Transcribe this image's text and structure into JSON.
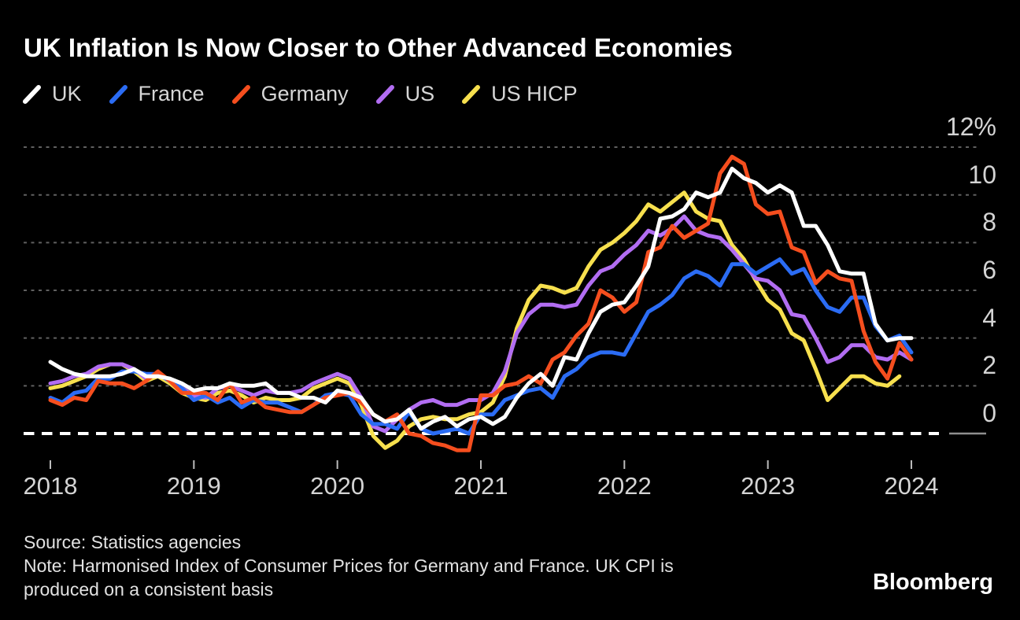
{
  "header": {
    "title": "UK Inflation Is Now Closer to Other Advanced Economies"
  },
  "footer": {
    "source": "Source: Statistics agencies",
    "note_line1": "Note: Harmonised Index of Consumer Prices for Germany and France. UK CPI is",
    "note_line2": "produced on a consistent basis"
  },
  "logo": {
    "text": "Bloomberg"
  },
  "colors": {
    "background": "#000000",
    "gridline": "#606060",
    "zero_line": "#ffffff",
    "zero_line_right_stub": "#8f8f8f",
    "axis_tick": "#bcbcbc",
    "axis_text": "#d4d4d4",
    "legend_text": "#d6d6d6",
    "title_text": "#ffffff"
  },
  "chart_data": {
    "type": "line",
    "title": "UK Inflation Is Now Closer to Other Advanced Economies",
    "unit": "% year-over-year",
    "x_start": "2018-01",
    "frequency": "monthly",
    "x_ticks": [
      "2018",
      "2019",
      "2020",
      "2021",
      "2022",
      "2023",
      "2024"
    ],
    "y_ticks": [
      0,
      2,
      4,
      6,
      8,
      10,
      12
    ],
    "y_top_tick_label": "12%",
    "ylim": [
      -1.5,
      12.5
    ],
    "grid": "horizontal-dotted",
    "zero_line": "thick-white-dashed",
    "legend_position": "top-left",
    "series": [
      {
        "name": "US HICP",
        "color": "#f7e04e",
        "values": [
          1.9,
          2.0,
          2.2,
          2.4,
          2.7,
          2.9,
          2.9,
          2.6,
          2.2,
          2.4,
          2.1,
          1.7,
          1.5,
          1.4,
          1.7,
          1.8,
          1.6,
          1.3,
          1.5,
          1.4,
          1.4,
          1.5,
          1.9,
          2.1,
          2.3,
          2.1,
          1.2,
          -0.1,
          -0.6,
          -0.3,
          0.3,
          0.6,
          0.7,
          0.6,
          0.6,
          0.8,
          0.9,
          1.3,
          2.4,
          4.4,
          5.6,
          6.2,
          6.1,
          5.9,
          6.1,
          7.0,
          7.7,
          8.0,
          8.4,
          8.9,
          9.6,
          9.3,
          9.7,
          10.1,
          9.3,
          9.0,
          8.9,
          7.9,
          7.3,
          6.4,
          5.6,
          5.2,
          4.2,
          3.9,
          2.7,
          1.4,
          1.9,
          2.4,
          2.4,
          2.1,
          2.0,
          2.4
        ]
      },
      {
        "name": "US",
        "color": "#b26df2",
        "values": [
          2.1,
          2.2,
          2.4,
          2.5,
          2.8,
          2.9,
          2.9,
          2.7,
          2.3,
          2.5,
          2.2,
          1.9,
          1.6,
          1.5,
          1.9,
          2.0,
          1.8,
          1.6,
          1.8,
          1.7,
          1.7,
          1.8,
          2.1,
          2.3,
          2.5,
          2.3,
          1.5,
          0.3,
          0.1,
          0.6,
          1.0,
          1.3,
          1.4,
          1.2,
          1.2,
          1.4,
          1.4,
          1.7,
          2.6,
          4.2,
          5.0,
          5.4,
          5.4,
          5.3,
          5.4,
          6.2,
          6.8,
          7.0,
          7.5,
          7.9,
          8.5,
          8.3,
          8.6,
          9.1,
          8.5,
          8.3,
          8.2,
          7.7,
          7.1,
          6.5,
          6.4,
          6.0,
          5.0,
          4.9,
          4.0,
          3.0,
          3.2,
          3.7,
          3.7,
          3.2,
          3.1,
          3.4,
          3.1
        ]
      },
      {
        "name": "France",
        "color": "#2b6cf4",
        "values": [
          1.5,
          1.3,
          1.7,
          1.8,
          2.3,
          2.3,
          2.6,
          2.6,
          2.5,
          2.5,
          2.2,
          1.9,
          1.4,
          1.6,
          1.3,
          1.5,
          1.1,
          1.4,
          1.3,
          1.3,
          1.1,
          0.9,
          1.2,
          1.6,
          1.7,
          1.6,
          0.8,
          0.4,
          0.4,
          0.2,
          0.9,
          0.2,
          0.0,
          0.1,
          0.2,
          0.0,
          0.8,
          0.8,
          1.4,
          1.6,
          1.8,
          1.9,
          1.5,
          2.4,
          2.7,
          3.2,
          3.4,
          3.4,
          3.3,
          4.2,
          5.1,
          5.4,
          5.8,
          6.5,
          6.8,
          6.6,
          6.2,
          7.1,
          7.1,
          6.7,
          7.0,
          7.3,
          6.7,
          6.9,
          6.0,
          5.3,
          5.1,
          5.7,
          5.7,
          4.5,
          3.9,
          4.1,
          3.4
        ]
      },
      {
        "name": "Germany",
        "color": "#f54e1e",
        "values": [
          1.4,
          1.2,
          1.5,
          1.4,
          2.2,
          2.1,
          2.1,
          1.9,
          2.2,
          2.6,
          2.2,
          1.7,
          1.7,
          1.7,
          1.4,
          2.1,
          1.3,
          1.5,
          1.1,
          1.0,
          0.9,
          0.9,
          1.2,
          1.5,
          1.6,
          1.7,
          1.3,
          0.8,
          0.5,
          0.8,
          0.0,
          -0.1,
          -0.4,
          -0.5,
          -0.7,
          -0.7,
          1.6,
          1.6,
          2.0,
          2.1,
          2.4,
          2.1,
          3.1,
          3.4,
          4.1,
          4.6,
          6.0,
          5.7,
          5.1,
          5.5,
          7.6,
          7.8,
          8.7,
          8.2,
          8.5,
          8.8,
          10.9,
          11.6,
          11.3,
          9.6,
          9.2,
          9.3,
          7.8,
          7.6,
          6.3,
          6.8,
          6.5,
          6.4,
          4.3,
          3.0,
          2.3,
          3.8,
          3.1
        ]
      },
      {
        "name": "UK",
        "color": "#ffffff",
        "values": [
          3.0,
          2.7,
          2.5,
          2.4,
          2.4,
          2.4,
          2.5,
          2.7,
          2.4,
          2.4,
          2.3,
          2.1,
          1.8,
          1.9,
          1.9,
          2.1,
          2.0,
          2.0,
          2.1,
          1.7,
          1.7,
          1.5,
          1.5,
          1.3,
          1.8,
          1.7,
          1.5,
          0.8,
          0.5,
          0.6,
          1.0,
          0.2,
          0.5,
          0.7,
          0.3,
          0.6,
          0.7,
          0.4,
          0.7,
          1.5,
          2.1,
          2.5,
          2.0,
          3.2,
          3.1,
          4.2,
          5.1,
          5.4,
          5.5,
          6.2,
          7.0,
          9.0,
          9.1,
          9.4,
          10.1,
          9.9,
          10.1,
          11.1,
          10.7,
          10.5,
          10.1,
          10.4,
          10.1,
          8.7,
          8.7,
          7.9,
          6.8,
          6.7,
          6.7,
          4.6,
          3.9,
          4.0,
          4.0
        ]
      }
    ],
    "legend_order": [
      "UK",
      "France",
      "Germany",
      "US",
      "US HICP"
    ]
  }
}
